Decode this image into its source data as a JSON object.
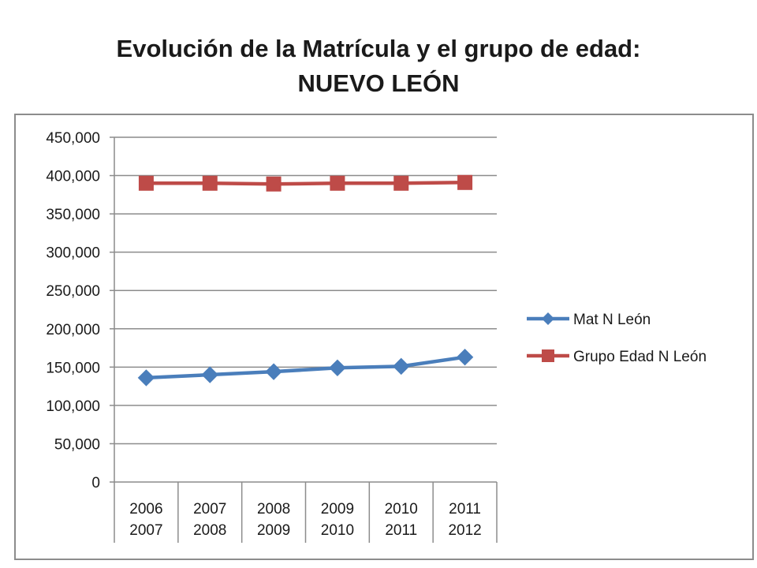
{
  "slide": {
    "title_line1": "Evolución de la Matrícula y el grupo de edad:",
    "title_line2": "NUEVO LEÓN"
  },
  "chart_data": {
    "type": "line",
    "title": "",
    "xlabel": "",
    "ylabel": "",
    "categories": [
      [
        "2006",
        "2007"
      ],
      [
        "2007",
        "2008"
      ],
      [
        "2008",
        "2009"
      ],
      [
        "2009",
        "2010"
      ],
      [
        "2010",
        "2011"
      ],
      [
        "2011",
        "2012"
      ]
    ],
    "ylim": [
      0,
      450000
    ],
    "yticks": [
      0,
      50000,
      100000,
      150000,
      200000,
      250000,
      300000,
      350000,
      400000,
      450000
    ],
    "ytick_labels": [
      "0",
      "50,000",
      "100,000",
      "150,000",
      "200,000",
      "250,000",
      "300,000",
      "350,000",
      "400,000",
      "450,000"
    ],
    "grid": true,
    "legend_position": "right",
    "series": [
      {
        "name": "Mat N León",
        "color": "#4a7ebb",
        "marker": "diamond",
        "values": [
          136000,
          140000,
          144000,
          149000,
          151000,
          163000
        ]
      },
      {
        "name": "Grupo Edad N León",
        "color": "#be4b48",
        "marker": "square",
        "values": [
          390000,
          390000,
          389000,
          390000,
          390000,
          391000
        ]
      }
    ]
  }
}
